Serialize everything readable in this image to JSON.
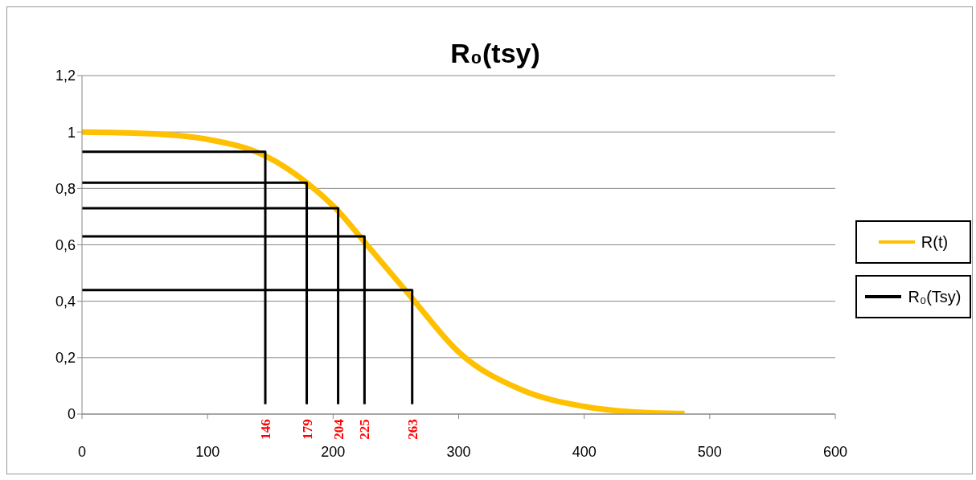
{
  "chart_data": {
    "type": "line",
    "title": "R₀(tsy)",
    "xlim": [
      0,
      600
    ],
    "xticks": [
      0,
      100,
      200,
      300,
      400,
      500,
      600
    ],
    "ylim": [
      0,
      1.2
    ],
    "yticks": [
      0,
      {
        "value": 0.2,
        "label": "0,2"
      },
      {
        "value": 0.4,
        "label": "0,4"
      },
      {
        "value": 0.6,
        "label": "0,6"
      },
      {
        "value": 0.8,
        "label": "0,8"
      },
      1,
      {
        "value": 1.2,
        "label": "1,2"
      }
    ],
    "grid": "y",
    "legend": "right",
    "series": [
      {
        "name": "R(t)",
        "color": "#ffc000",
        "x": [
          0,
          50,
          100,
          146,
          179,
          204,
          225,
          263,
          300,
          350,
          400,
          450,
          480
        ],
        "values": [
          1,
          0.995,
          0.974,
          0.915,
          0.82,
          0.72,
          0.61,
          0.41,
          0.22,
          0.086,
          0.027,
          0.005,
          0.002
        ]
      },
      {
        "name": "R₀(Tsy)",
        "color": "#000000",
        "x": [
          0,
          146,
          146
        ],
        "values": [
          0.93,
          0.93,
          0.035
        ]
      },
      {
        "color": "#000000",
        "x": [
          0,
          179,
          179
        ],
        "values": [
          0.82,
          0.82,
          0.035
        ]
      },
      {
        "color": "#000000",
        "x": [
          0,
          204,
          204
        ],
        "values": [
          0.73,
          0.73,
          0.035
        ]
      },
      {
        "color": "#000000",
        "x": [
          0,
          225,
          225
        ],
        "values": [
          0.63,
          0.63,
          0.035
        ]
      },
      {
        "color": "#000000",
        "x": [
          0,
          263,
          263
        ],
        "values": [
          0.44,
          0.44,
          0.035
        ]
      }
    ],
    "annotations": [
      {
        "text": "146",
        "x": 146,
        "y": 0.035
      },
      {
        "text": "179",
        "x": 179,
        "y": 0.035
      },
      {
        "text": "204",
        "x": 204,
        "y": 0.035
      },
      {
        "text": "225",
        "x": 225,
        "y": 0.035
      },
      {
        "text": "263",
        "x": 263,
        "y": 0.035
      }
    ]
  }
}
